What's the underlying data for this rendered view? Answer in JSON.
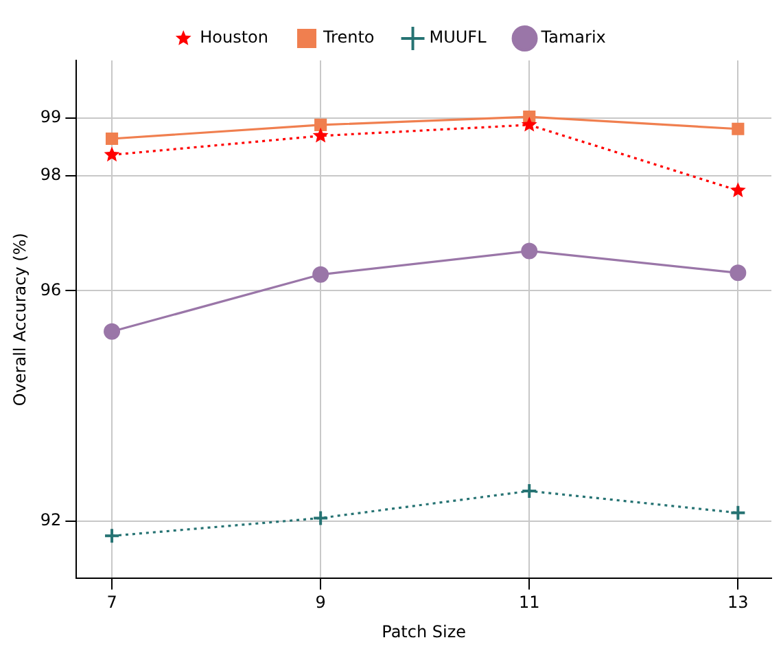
{
  "chart_data": {
    "type": "line",
    "xlabel": "Patch Size",
    "ylabel": "Overall Accuracy (%)",
    "x": [
      7,
      9,
      11,
      13
    ],
    "xlim": [
      6.66,
      13.32
    ],
    "xticks": [
      7,
      9,
      11,
      13
    ],
    "ylim": [
      91,
      100
    ],
    "yticks": [
      92,
      96,
      98,
      99
    ],
    "grid": true,
    "legend": "top",
    "series": [
      {
        "name": "Houston",
        "color": "#ff0000",
        "marker": "star",
        "line_style": "dotted",
        "values": [
          98.36,
          98.69,
          98.88,
          97.74
        ]
      },
      {
        "name": "Trento",
        "color": "#f07f4f",
        "marker": "square",
        "line_style": "solid",
        "values": [
          98.64,
          98.88,
          99.02,
          98.81
        ]
      },
      {
        "name": "MUUFL",
        "color": "#267373",
        "marker": "cross",
        "line_style": "dotted",
        "values": [
          91.74,
          92.05,
          92.52,
          92.14
        ]
      },
      {
        "name": "Tamarix",
        "color": "#9a76a8",
        "marker": "circle",
        "line_style": "solid",
        "values": [
          95.29,
          96.28,
          96.69,
          96.31
        ]
      }
    ]
  }
}
